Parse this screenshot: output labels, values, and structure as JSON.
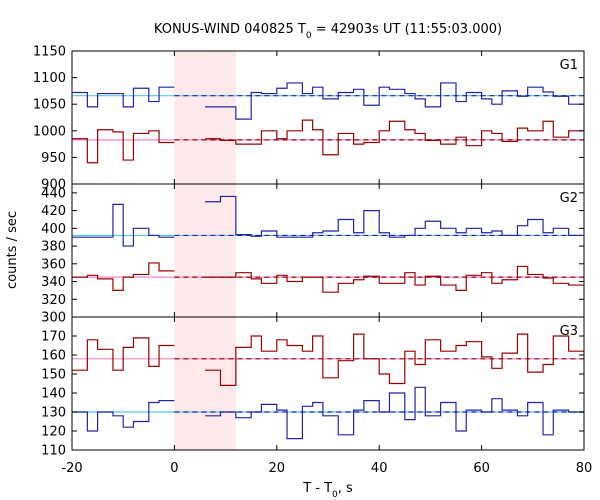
{
  "chart_data": {
    "type": "line",
    "title_main": "KONUS-WIND 040825 T",
    "title_sub": "0",
    "title_rest": " = 42903s UT (11:55:03.000)",
    "xlabel_main": "T - T",
    "xlabel_sub": "0",
    "xlabel_rest": ", s",
    "ylabel": "counts / sec",
    "xlim": [
      -20,
      80
    ],
    "xticks": [
      -20,
      0,
      20,
      40,
      60,
      80
    ],
    "highlight_interval": [
      0,
      12
    ],
    "colors": {
      "blue": "#2222aa",
      "red": "#990000",
      "cyan": "#55c8e6",
      "pink": "#ee88cc",
      "highlight": "#fde8ea"
    },
    "bin_edges": [
      -20,
      -17,
      -15,
      -12,
      -10,
      -8,
      -5,
      -3,
      0,
      3,
      6,
      9,
      12,
      15,
      17,
      20,
      22,
      25,
      27,
      29,
      32,
      35,
      37,
      40,
      42,
      45,
      47,
      49,
      52,
      55,
      57,
      60,
      62,
      64,
      67,
      69,
      72,
      74,
      77,
      80
    ],
    "panels": [
      {
        "label": "G1",
        "ylim": [
          900,
          1150
        ],
        "yticks": [
          900,
          950,
          1000,
          1050,
          1100,
          1150
        ],
        "series": [
          {
            "color": "blue",
            "values": [
              1072,
              1045,
              1070,
              1070,
              1045,
              1080,
              1055,
              1082,
              null,
              null,
              1045,
              1045,
              1022,
              1072,
              1070,
              1080,
              1090,
              1070,
              1082,
              1060,
              1072,
              1078,
              1048,
              1082,
              1078,
              1070,
              1060,
              1045,
              1090,
              1055,
              1072,
              1060,
              1050,
              1075,
              1065,
              1082,
              1073,
              1065,
              1050
            ],
            "fit": 1066,
            "fit_color": "cyan"
          },
          {
            "color": "red",
            "values": [
              985,
              940,
              1002,
              998,
              945,
              995,
              1000,
              978,
              null,
              null,
              985,
              982,
              975,
              975,
              1000,
              985,
              1000,
              1020,
              1002,
              955,
              995,
              975,
              978,
              1000,
              1018,
              1002,
              995,
              982,
              975,
              988,
              972,
              1000,
              995,
              980,
              1005,
              1000,
              1018,
              988,
              1000
            ],
            "fit": 983,
            "fit_color": "pink"
          }
        ]
      },
      {
        "label": "G2",
        "ylim": [
          300,
          450
        ],
        "yticks": [
          300,
          320,
          340,
          360,
          380,
          400,
          420,
          440
        ],
        "series": [
          {
            "color": "blue",
            "values": [
              390,
              390,
              390,
              427,
              380,
              400,
              392,
              390,
              null,
              null,
              430,
              436,
              393,
              391,
              397,
              390,
              390,
              390,
              395,
              397,
              410,
              395,
              420,
              395,
              390,
              392,
              400,
              408,
              400,
              395,
              400,
              395,
              397,
              392,
              403,
              410,
              395,
              400,
              392
            ],
            "fit": 392,
            "fit_color": "cyan"
          },
          {
            "color": "red",
            "values": [
              345,
              347,
              343,
              330,
              345,
              348,
              361,
              352,
              null,
              null,
              345,
              345,
              350,
              343,
              338,
              347,
              340,
              345,
              345,
              328,
              338,
              342,
              346,
              338,
              338,
              350,
              336,
              346,
              336,
              330,
              347,
              350,
              338,
              342,
              357,
              348,
              344,
              338,
              336
            ],
            "fit": 345,
            "fit_color": "pink"
          }
        ]
      },
      {
        "label": "G3",
        "ylim": [
          110,
          180
        ],
        "yticks": [
          110,
          120,
          130,
          140,
          150,
          160,
          170
        ],
        "series": [
          {
            "color": "red",
            "values": [
              152,
              168,
              163,
              152,
              164,
              169,
              154,
              165,
              null,
              null,
              152,
              144,
              164,
              170,
              162,
              168,
              165,
              162,
              170,
              148,
              157,
              171,
              158,
              150,
              145,
              162,
              155,
              168,
              162,
              165,
              167,
              159,
              153,
              161,
              171,
              151,
              155,
              170,
              162
            ],
            "fit": 158,
            "fit_color": "pink"
          },
          {
            "color": "blue",
            "values": [
              130,
              120,
              130,
              128,
              122,
              125,
              135,
              136,
              null,
              null,
              128,
              130,
              127,
              130,
              134,
              131,
              116,
              133,
              135,
              128,
              118,
              131,
              136,
              130,
              140,
              126,
              143,
              128,
              135,
              120,
              131,
              130,
              137,
              131,
              128,
              135,
              118,
              131,
              130
            ],
            "fit": 130,
            "fit_color": "cyan"
          }
        ]
      }
    ]
  }
}
